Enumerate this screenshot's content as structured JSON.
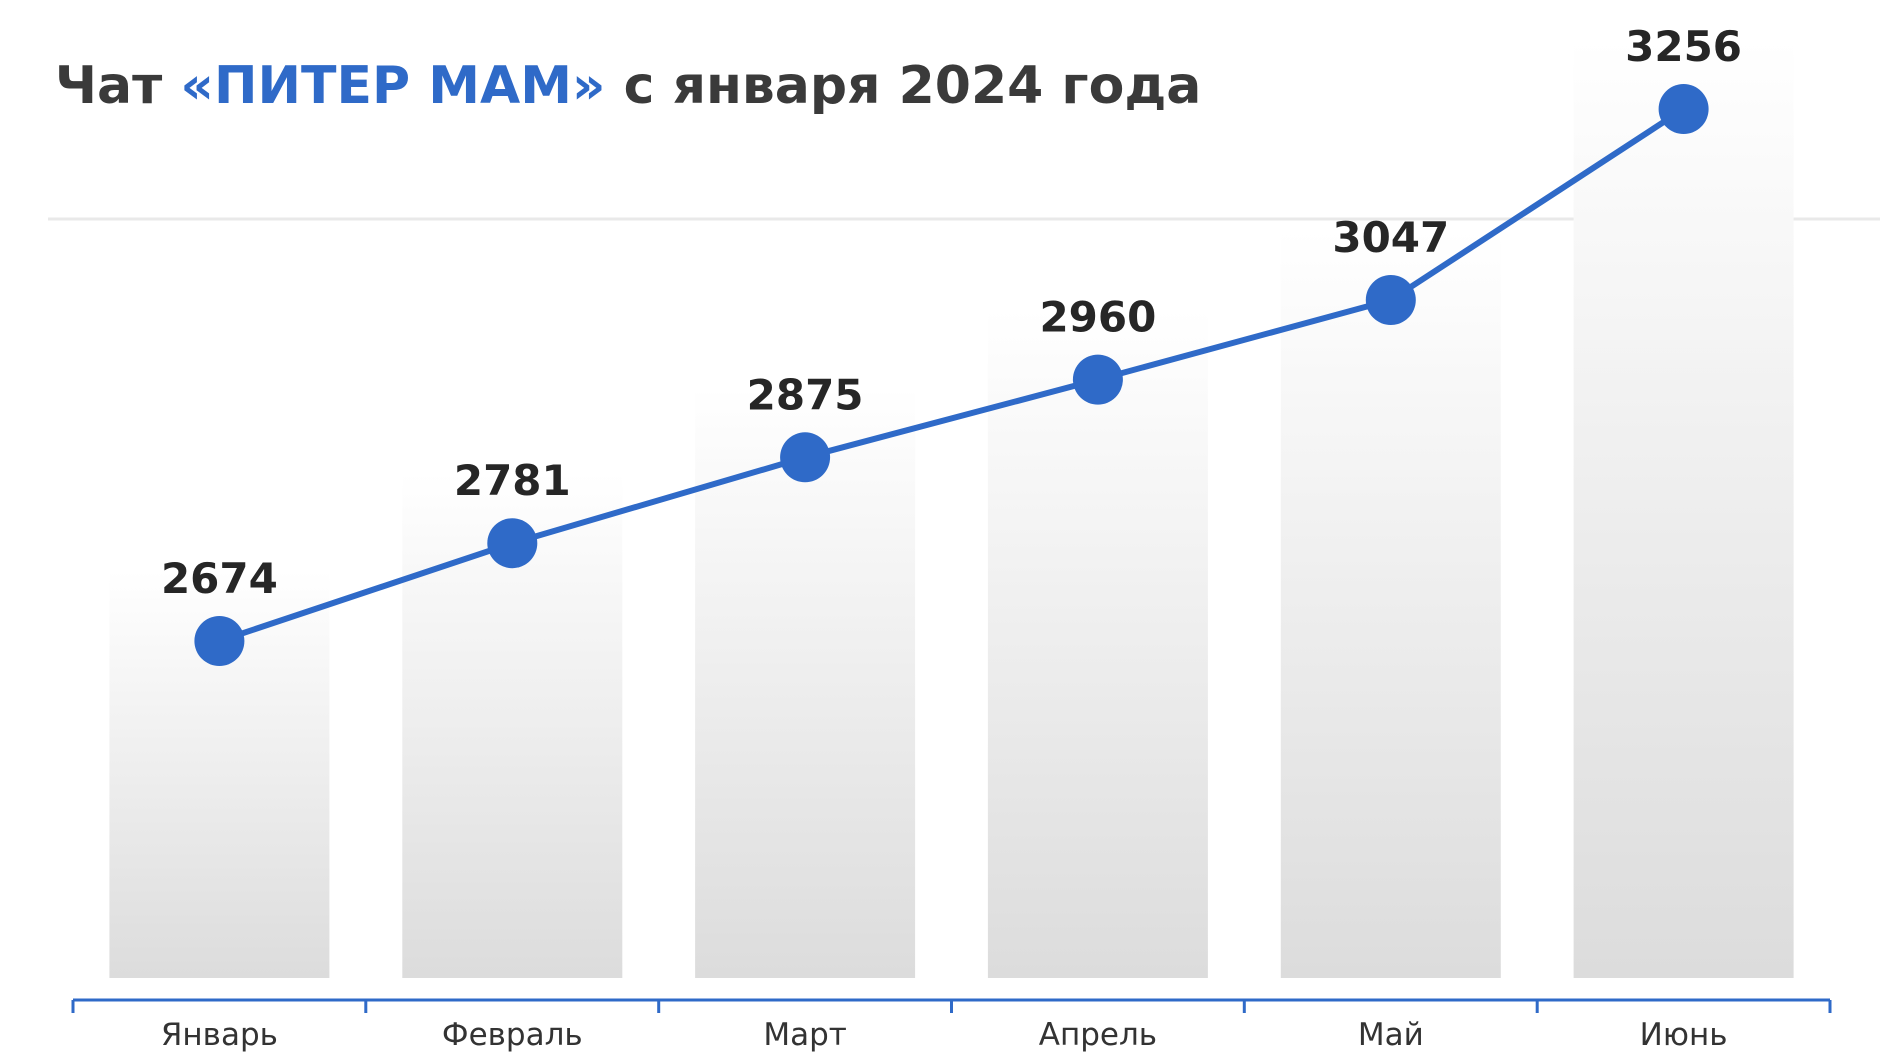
{
  "title": {
    "prefix": "Чат ",
    "highlight": "«ПИТЕР МАМ»",
    "suffix": " с января 2024 года"
  },
  "colors": {
    "accent": "#2f6ac8",
    "title_text": "#3a3a3a",
    "value_text": "#262626",
    "bar_top": "#ffffff",
    "bar_bottom": "#dcdcdc"
  },
  "chart_data": {
    "type": "line",
    "categories": [
      "Январь",
      "Февраль",
      "Март",
      "Апрель",
      "Май",
      "Июнь"
    ],
    "values": [
      2674,
      2781,
      2875,
      2960,
      3047,
      3256
    ],
    "title": "Чат «ПИТЕР МАМ» с января 2024 года",
    "xlabel": "",
    "ylabel": "",
    "background_bars": true,
    "data_labels": true,
    "grid": false,
    "legend": "none"
  }
}
